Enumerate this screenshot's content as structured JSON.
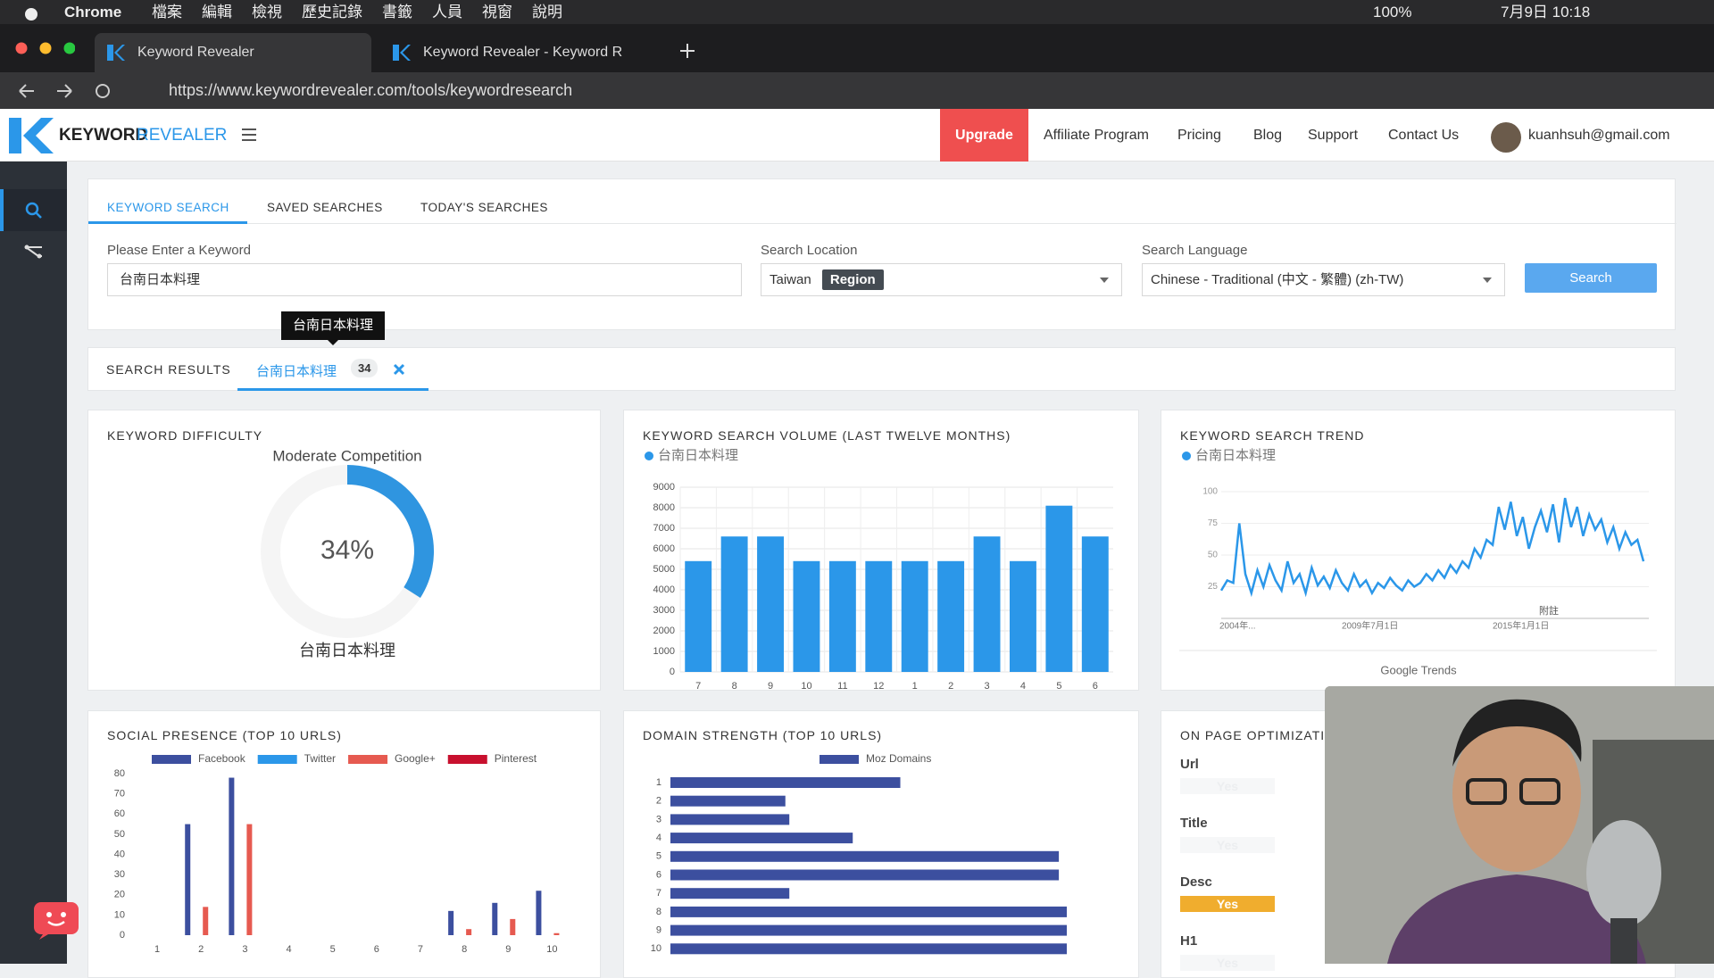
{
  "menubar": {
    "app": "Chrome",
    "menus": [
      "檔案",
      "編輯",
      "檢視",
      "歷史記錄",
      "書籤",
      "人員",
      "視窗",
      "說明"
    ],
    "battery": "100%",
    "clock": "7月9日 10:18"
  },
  "browser": {
    "tabs": [
      "Keyword Revealer",
      "Keyword Revealer - Keyword R"
    ],
    "url": "https://www.keywordrevealer.com/tools/keywordresearch"
  },
  "header": {
    "logo": [
      "KEYWORD",
      "REVEALER"
    ],
    "nav": [
      "Upgrade",
      "Affiliate Program",
      "Pricing",
      "Blog",
      "Support",
      "Contact Us"
    ],
    "user": "kuanhsuh@gmail.com"
  },
  "search_tabs": [
    "KEYWORD SEARCH",
    "SAVED SEARCHES",
    "TODAY'S SEARCHES"
  ],
  "form": {
    "keyword": {
      "label": "Please Enter a Keyword",
      "value": "台南日本料理"
    },
    "location": {
      "label": "Search Location",
      "value": "Taiwan",
      "badge": "Region"
    },
    "language": {
      "label": "Search Language",
      "value": "Chinese - Traditional (中文 - 繁體) (zh-TW)"
    },
    "button": "Search"
  },
  "tooltip": "台南日本料理",
  "results": {
    "label": "SEARCH RESULTS",
    "keyword": "台南日本料理",
    "count": 34
  },
  "chart_data": [
    {
      "type": "donut",
      "title": "KEYWORD DIFFICULTY",
      "subtitle": "Moderate Competition",
      "value": 34,
      "value_label": "34%",
      "label": "台南日本料理",
      "color": "#2f95e0"
    },
    {
      "type": "bar",
      "title": "KEYWORD SEARCH VOLUME (LAST TWELVE MONTHS)",
      "categories": [
        "7",
        "8",
        "9",
        "10",
        "11",
        "12",
        "1",
        "2",
        "3",
        "4",
        "5",
        "6"
      ],
      "series": [
        {
          "name": "台南日本料理",
          "color": "#2b97e9",
          "values": [
            5400,
            6600,
            6600,
            5400,
            5400,
            5400,
            5400,
            5400,
            6600,
            5400,
            8100,
            6600
          ]
        }
      ],
      "ylim": [
        0,
        9000
      ],
      "yticks": [
        0,
        1000,
        2000,
        3000,
        4000,
        5000,
        6000,
        7000,
        8000,
        9000
      ],
      "grid": true
    },
    {
      "type": "line",
      "title": "KEYWORD SEARCH TREND",
      "series": [
        {
          "name": "台南日本料理",
          "color": "#2b97e9",
          "values": [
            22,
            30,
            28,
            75,
            35,
            20,
            38,
            25,
            42,
            30,
            22,
            45,
            28,
            35,
            20,
            40,
            26,
            33,
            24,
            38,
            28,
            22,
            35,
            25,
            30,
            20,
            28,
            24,
            32,
            26,
            22,
            30,
            25,
            28,
            35,
            30,
            38,
            32,
            42,
            36,
            45,
            40,
            55,
            48,
            62,
            58,
            88,
            70,
            92,
            65,
            80,
            55,
            72,
            85,
            68,
            90,
            60,
            95,
            72,
            88,
            65,
            82,
            70,
            78,
            60,
            72,
            55,
            68,
            58,
            62,
            45
          ]
        }
      ],
      "ylim": [
        0,
        100
      ],
      "yticks": [
        25,
        50,
        75,
        100
      ],
      "x_labels": [
        "2004年...",
        "2009年7月1日",
        "2015年1月1日"
      ],
      "note": "附註",
      "source": "Google Trends",
      "grid": true
    },
    {
      "type": "grouped-bar",
      "title": "SOCIAL PRESENCE (TOP 10 URLS)",
      "categories": [
        "1",
        "2",
        "3",
        "4",
        "5",
        "6",
        "7",
        "8",
        "9",
        "10"
      ],
      "series": [
        {
          "name": "Facebook",
          "color": "#3c4f9f",
          "values": [
            0,
            55,
            78,
            0,
            0,
            0,
            0,
            12,
            16,
            22
          ]
        },
        {
          "name": "Twitter",
          "color": "#2b97e9",
          "values": [
            0,
            0,
            0,
            0,
            0,
            0,
            0,
            0,
            0,
            0
          ]
        },
        {
          "name": "Google+",
          "color": "#e65a50",
          "values": [
            0,
            14,
            55,
            0,
            0,
            0,
            0,
            3,
            8,
            1
          ]
        },
        {
          "name": "Pinterest",
          "color": "#c8102e",
          "values": [
            0,
            0,
            0,
            0,
            0,
            0,
            0,
            0,
            0,
            0
          ]
        }
      ],
      "ylim": [
        0,
        80
      ],
      "yticks": [
        0,
        10,
        20,
        30,
        40,
        50,
        60,
        70,
        80
      ]
    },
    {
      "type": "hbar",
      "title": "DOMAIN STRENGTH (TOP 10 URLS)",
      "categories": [
        "1",
        "2",
        "3",
        "4",
        "5",
        "6",
        "7",
        "8",
        "9",
        "10"
      ],
      "series": [
        {
          "name": "Moz Domains",
          "color": "#3c4f9f",
          "values": [
            58,
            29,
            30,
            46,
            98,
            98,
            30,
            100,
            100,
            100
          ]
        }
      ],
      "xlim": [
        0,
        100
      ]
    }
  ],
  "on_page": {
    "title": "ON PAGE OPTIMIZATI",
    "items": [
      {
        "label": "Url",
        "status": "Yes"
      },
      {
        "label": "Title",
        "status": "Yes"
      },
      {
        "label": "Desc",
        "status": "Yes"
      },
      {
        "label": "H1",
        "status": "Yes"
      }
    ]
  }
}
